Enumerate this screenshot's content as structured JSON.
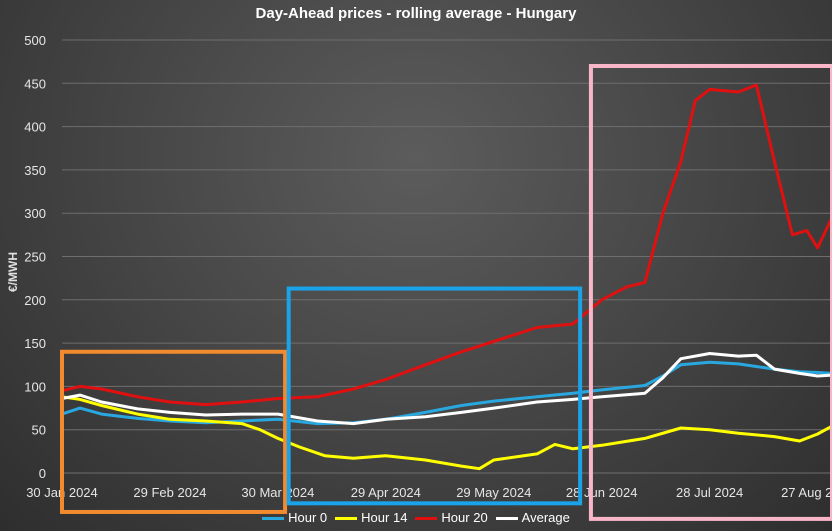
{
  "chart_data": {
    "type": "line",
    "title": "Day-Ahead prices - rolling average - Hungary",
    "ylabel": "€/MWH",
    "xlabel": "",
    "ylim": [
      0,
      500
    ],
    "yticks": [
      0,
      50,
      100,
      150,
      200,
      250,
      300,
      350,
      400,
      450,
      500
    ],
    "x_start": "30 Jan 2024",
    "x_end": "31 Aug 2024",
    "xticks": [
      {
        "date": "30 Jan 2024",
        "label": "30 Jan 2024"
      },
      {
        "date": "29 Feb 2024",
        "label": "29 Feb 2024"
      },
      {
        "date": "30 Mar 2024",
        "label": "30 Mar 2024"
      },
      {
        "date": "29 Apr 2024",
        "label": "29 Apr 2024"
      },
      {
        "date": "29 May 2024",
        "label": "29 May 2024"
      },
      {
        "date": "28 Jun 2024",
        "label": "28 Jun 2024"
      },
      {
        "date": "28 Jul 2024",
        "label": "28 Jul 2024"
      },
      {
        "date": "27 Aug 2024",
        "label": "27 Aug 2024"
      }
    ],
    "grid": true,
    "legend_position": "bottom",
    "series": [
      {
        "name": "Hour 0",
        "color": "#29a8e0",
        "points": [
          [
            "30 Jan 2024",
            68
          ],
          [
            "4 Feb 2024",
            75
          ],
          [
            "10 Feb 2024",
            68
          ],
          [
            "20 Feb 2024",
            63
          ],
          [
            "29 Feb 2024",
            60
          ],
          [
            "10 Mar 2024",
            58
          ],
          [
            "20 Mar 2024",
            60
          ],
          [
            "30 Mar 2024",
            62
          ],
          [
            "10 Apr 2024",
            57
          ],
          [
            "20 Apr 2024",
            58
          ],
          [
            "29 Apr 2024",
            62
          ],
          [
            "10 May 2024",
            70
          ],
          [
            "20 May 2024",
            78
          ],
          [
            "29 May 2024",
            83
          ],
          [
            "10 Jun 2024",
            88
          ],
          [
            "20 Jun 2024",
            92
          ],
          [
            "28 Jun 2024",
            96
          ],
          [
            "10 Jul 2024",
            101
          ],
          [
            "15 Jul 2024",
            112
          ],
          [
            "20 Jul 2024",
            125
          ],
          [
            "28 Jul 2024",
            128
          ],
          [
            "5 Aug 2024",
            126
          ],
          [
            "15 Aug 2024",
            120
          ],
          [
            "22 Aug 2024",
            117
          ],
          [
            "27 Aug 2024",
            116
          ],
          [
            "31 Aug 2024",
            115
          ]
        ]
      },
      {
        "name": "Hour 14",
        "color": "#ffff00",
        "points": [
          [
            "30 Jan 2024",
            88
          ],
          [
            "4 Feb 2024",
            85
          ],
          [
            "10 Feb 2024",
            78
          ],
          [
            "20 Feb 2024",
            68
          ],
          [
            "29 Feb 2024",
            62
          ],
          [
            "10 Mar 2024",
            60
          ],
          [
            "20 Mar 2024",
            57
          ],
          [
            "25 Mar 2024",
            50
          ],
          [
            "30 Mar 2024",
            40
          ],
          [
            "5 Apr 2024",
            30
          ],
          [
            "12 Apr 2024",
            20
          ],
          [
            "20 Apr 2024",
            17
          ],
          [
            "29 Apr 2024",
            20
          ],
          [
            "10 May 2024",
            15
          ],
          [
            "20 May 2024",
            8
          ],
          [
            "25 May 2024",
            5
          ],
          [
            "29 May 2024",
            15
          ],
          [
            "10 Jun 2024",
            22
          ],
          [
            "15 Jun 2024",
            33
          ],
          [
            "20 Jun 2024",
            28
          ],
          [
            "28 Jun 2024",
            32
          ],
          [
            "10 Jul 2024",
            40
          ],
          [
            "20 Jul 2024",
            52
          ],
          [
            "28 Jul 2024",
            50
          ],
          [
            "5 Aug 2024",
            46
          ],
          [
            "15 Aug 2024",
            42
          ],
          [
            "22 Aug 2024",
            37
          ],
          [
            "27 Aug 2024",
            45
          ],
          [
            "31 Aug 2024",
            54
          ]
        ]
      },
      {
        "name": "Hour 20",
        "color": "#e01010",
        "points": [
          [
            "30 Jan 2024",
            95
          ],
          [
            "4 Feb 2024",
            100
          ],
          [
            "10 Feb 2024",
            97
          ],
          [
            "20 Feb 2024",
            88
          ],
          [
            "29 Feb 2024",
            82
          ],
          [
            "10 Mar 2024",
            79
          ],
          [
            "20 Mar 2024",
            82
          ],
          [
            "30 Mar 2024",
            86
          ],
          [
            "10 Apr 2024",
            88
          ],
          [
            "20 Apr 2024",
            97
          ],
          [
            "29 Apr 2024",
            108
          ],
          [
            "10 May 2024",
            125
          ],
          [
            "20 May 2024",
            140
          ],
          [
            "29 May 2024",
            152
          ],
          [
            "10 Jun 2024",
            168
          ],
          [
            "20 Jun 2024",
            172
          ],
          [
            "28 Jun 2024",
            200
          ],
          [
            "5 Jul 2024",
            215
          ],
          [
            "10 Jul 2024",
            220
          ],
          [
            "15 Jul 2024",
            300
          ],
          [
            "20 Jul 2024",
            360
          ],
          [
            "24 Jul 2024",
            430
          ],
          [
            "28 Jul 2024",
            443
          ],
          [
            "5 Aug 2024",
            440
          ],
          [
            "10 Aug 2024",
            448
          ],
          [
            "15 Aug 2024",
            360
          ],
          [
            "20 Aug 2024",
            275
          ],
          [
            "24 Aug 2024",
            280
          ],
          [
            "27 Aug 2024",
            260
          ],
          [
            "31 Aug 2024",
            295
          ]
        ]
      },
      {
        "name": "Average",
        "color": "#ffffff",
        "points": [
          [
            "30 Jan 2024",
            86
          ],
          [
            "4 Feb 2024",
            90
          ],
          [
            "10 Feb 2024",
            82
          ],
          [
            "20 Feb 2024",
            74
          ],
          [
            "29 Feb 2024",
            70
          ],
          [
            "10 Mar 2024",
            67
          ],
          [
            "20 Mar 2024",
            68
          ],
          [
            "30 Mar 2024",
            68
          ],
          [
            "10 Apr 2024",
            60
          ],
          [
            "20 Apr 2024",
            57
          ],
          [
            "29 Apr 2024",
            62
          ],
          [
            "10 May 2024",
            65
          ],
          [
            "20 May 2024",
            70
          ],
          [
            "29 May 2024",
            75
          ],
          [
            "10 Jun 2024",
            82
          ],
          [
            "20 Jun 2024",
            85
          ],
          [
            "28 Jun 2024",
            88
          ],
          [
            "10 Jul 2024",
            92
          ],
          [
            "15 Jul 2024",
            110
          ],
          [
            "20 Jul 2024",
            132
          ],
          [
            "28 Jul 2024",
            138
          ],
          [
            "5 Aug 2024",
            135
          ],
          [
            "10 Aug 2024",
            136
          ],
          [
            "15 Aug 2024",
            120
          ],
          [
            "22 Aug 2024",
            115
          ],
          [
            "27 Aug 2024",
            112
          ],
          [
            "31 Aug 2024",
            113
          ]
        ]
      }
    ],
    "annotations": [
      {
        "label": "",
        "color": "#f28a30",
        "x_from": "30 Jan 2024",
        "x_to": "1 Apr 2024",
        "y_from": -45,
        "y_to": 140
      },
      {
        "label": "",
        "color": "#1aa3e8",
        "x_from": "2 Apr 2024",
        "x_to": "22 Jun 2024",
        "y_from": -35,
        "y_to": 213
      },
      {
        "label": "",
        "color": "#f9b6c8",
        "x_from": "25 Jun 2024",
        "x_to": "31 Aug 2024",
        "y_from": -53,
        "y_to": 470
      }
    ]
  }
}
